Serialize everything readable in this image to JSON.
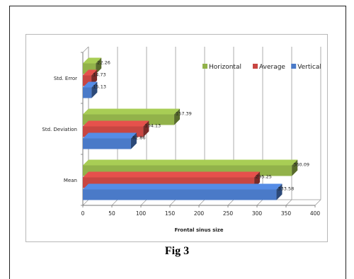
{
  "caption": "Fig 3",
  "chart_data": {
    "type": "bar",
    "orientation": "horizontal",
    "style": "3d-clustered",
    "categories": [
      "Mean",
      "Std. Deviation",
      "Std. Error"
    ],
    "series": [
      {
        "name": "Vertical",
        "color": "#4a7ac8",
        "values": [
          333.58,
          82.86,
          15.13
        ]
      },
      {
        "name": "Average",
        "color": "#c84642",
        "values": [
          295.25,
          104.13,
          14.73
        ]
      },
      {
        "name": "Horizontal",
        "color": "#92b24a",
        "values": [
          360.09,
          157.39,
          22.26
        ]
      }
    ],
    "value_labels": [
      [
        "333.58",
        "82.86",
        "15.13"
      ],
      [
        "295.25",
        "104.13",
        "14.73"
      ],
      [
        "360.09",
        "157.39",
        "22.26"
      ]
    ],
    "xlabel": "Frontal sinus size",
    "ylabel": "",
    "xlim": [
      0,
      400
    ],
    "xticks": [
      "0",
      "50",
      "100",
      "150",
      "200",
      "250",
      "300",
      "350",
      "400"
    ],
    "legend_order": [
      "Horizontal",
      "Average",
      "Vertical"
    ],
    "legend_position": "top-right",
    "grid": true
  }
}
